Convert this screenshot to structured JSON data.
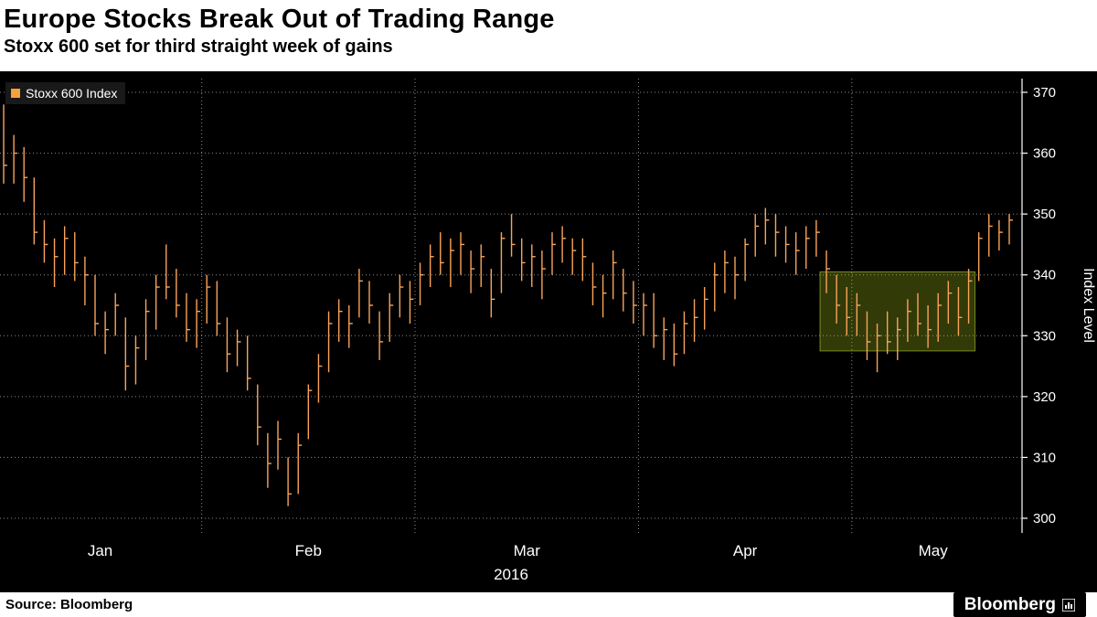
{
  "header": {
    "title": "Europe Stocks Break Out of Trading Range",
    "subtitle": "Stoxx 600 set for third straight week of gains"
  },
  "legend": {
    "label": "Stoxx 600 Index"
  },
  "footer": {
    "source": "Source: Bloomberg",
    "logo": "Bloomberg"
  },
  "colors": {
    "background": "#000000",
    "bar": "#f9a35a",
    "legend_swatch": "#f7a13c",
    "grid": "rgba(255,255,255,0.55)",
    "axis": "#ffffff",
    "highlight_fill": "rgba(178,207,27,0.28)",
    "highlight_stroke": "rgba(198,224,60,0.55)"
  },
  "chart_data": {
    "type": "bar",
    "style": "hlc-price-bars",
    "title": "Europe Stocks Break Out of Trading Range",
    "series_name": "Stoxx 600 Index",
    "xlabel": "2016",
    "ylabel": "Index Level",
    "ylim": [
      297,
      373
    ],
    "yticks": [
      300,
      310,
      320,
      330,
      340,
      350,
      360,
      370
    ],
    "grid": true,
    "legend_position": "top-left",
    "months": [
      {
        "label": "Jan",
        "days": 20
      },
      {
        "label": "Feb",
        "days": 21
      },
      {
        "label": "Mar",
        "days": 22
      },
      {
        "label": "Apr",
        "days": 21
      },
      {
        "label": "May",
        "days": 16
      }
    ],
    "bars_format": [
      "high",
      "low",
      "close"
    ],
    "bars": [
      [
        368,
        355,
        358
      ],
      [
        363,
        355,
        360
      ],
      [
        361,
        352,
        356
      ],
      [
        356,
        345,
        347
      ],
      [
        349,
        342,
        345
      ],
      [
        346,
        338,
        343
      ],
      [
        348,
        340,
        346
      ],
      [
        347,
        339,
        342
      ],
      [
        343,
        335,
        340
      ],
      [
        340,
        330,
        332
      ],
      [
        334,
        327,
        331
      ],
      [
        337,
        330,
        335
      ],
      [
        333,
        321,
        325
      ],
      [
        330,
        322,
        328
      ],
      [
        336,
        326,
        334
      ],
      [
        340,
        331,
        338
      ],
      [
        345,
        336,
        338
      ],
      [
        341,
        333,
        335
      ],
      [
        337,
        329,
        331
      ],
      [
        336,
        328,
        334
      ],
      [
        340,
        332,
        338
      ],
      [
        339,
        330,
        332
      ],
      [
        333,
        324,
        327
      ],
      [
        331,
        325,
        329
      ],
      [
        330,
        321,
        323
      ],
      [
        322,
        312,
        315
      ],
      [
        314,
        305,
        309
      ],
      [
        316,
        308,
        313
      ],
      [
        310,
        302,
        304
      ],
      [
        314,
        304,
        312
      ],
      [
        322,
        313,
        321
      ],
      [
        327,
        319,
        325
      ],
      [
        334,
        324,
        332
      ],
      [
        336,
        329,
        334
      ],
      [
        335,
        328,
        332
      ],
      [
        341,
        333,
        339
      ],
      [
        339,
        332,
        335
      ],
      [
        334,
        326,
        329
      ],
      [
        337,
        329,
        335
      ],
      [
        340,
        333,
        338
      ],
      [
        339,
        332,
        336
      ],
      [
        342,
        335,
        340
      ],
      [
        345,
        338,
        343
      ],
      [
        347,
        340,
        342
      ],
      [
        346,
        338,
        344
      ],
      [
        347,
        340,
        345
      ],
      [
        344,
        337,
        341
      ],
      [
        345,
        338,
        343
      ],
      [
        341,
        333,
        336
      ],
      [
        347,
        337,
        346
      ],
      [
        350,
        343,
        345
      ],
      [
        346,
        339,
        342
      ],
      [
        345,
        338,
        343
      ],
      [
        344,
        336,
        341
      ],
      [
        347,
        340,
        345
      ],
      [
        348,
        342,
        346
      ],
      [
        346,
        340,
        344
      ],
      [
        346,
        339,
        343
      ],
      [
        342,
        335,
        338
      ],
      [
        340,
        333,
        337
      ],
      [
        344,
        336,
        342
      ],
      [
        341,
        334,
        337
      ],
      [
        339,
        332,
        335
      ],
      [
        337,
        330,
        335
      ],
      [
        337,
        328,
        330
      ],
      [
        333,
        326,
        331
      ],
      [
        332,
        325,
        327
      ],
      [
        334,
        327,
        332
      ],
      [
        336,
        329,
        333
      ],
      [
        338,
        331,
        336
      ],
      [
        342,
        334,
        340
      ],
      [
        344,
        337,
        342
      ],
      [
        343,
        336,
        340
      ],
      [
        346,
        339,
        345
      ],
      [
        350,
        343,
        348
      ],
      [
        351,
        345,
        349
      ],
      [
        350,
        343,
        347
      ],
      [
        348,
        342,
        345
      ],
      [
        347,
        340,
        344
      ],
      [
        348,
        341,
        346
      ],
      [
        349,
        343,
        347
      ],
      [
        344,
        337,
        341
      ],
      [
        340,
        332,
        335
      ],
      [
        338,
        330,
        333
      ],
      [
        337,
        330,
        335
      ],
      [
        334,
        326,
        329
      ],
      [
        332,
        324,
        330
      ],
      [
        334,
        327,
        329
      ],
      [
        333,
        326,
        331
      ],
      [
        336,
        329,
        334
      ],
      [
        337,
        330,
        332
      ],
      [
        335,
        328,
        331
      ],
      [
        337,
        329,
        335
      ],
      [
        339,
        332,
        337
      ],
      [
        338,
        330,
        333
      ],
      [
        341,
        332,
        339
      ],
      [
        347,
        339,
        346
      ],
      [
        350,
        343,
        348
      ],
      [
        349,
        344,
        347
      ],
      [
        350,
        345,
        349
      ]
    ],
    "highlight_box": {
      "start_index": 81,
      "end_index": 95,
      "top_value": 340.5,
      "bottom_value": 327.5,
      "note": "trading range"
    }
  }
}
